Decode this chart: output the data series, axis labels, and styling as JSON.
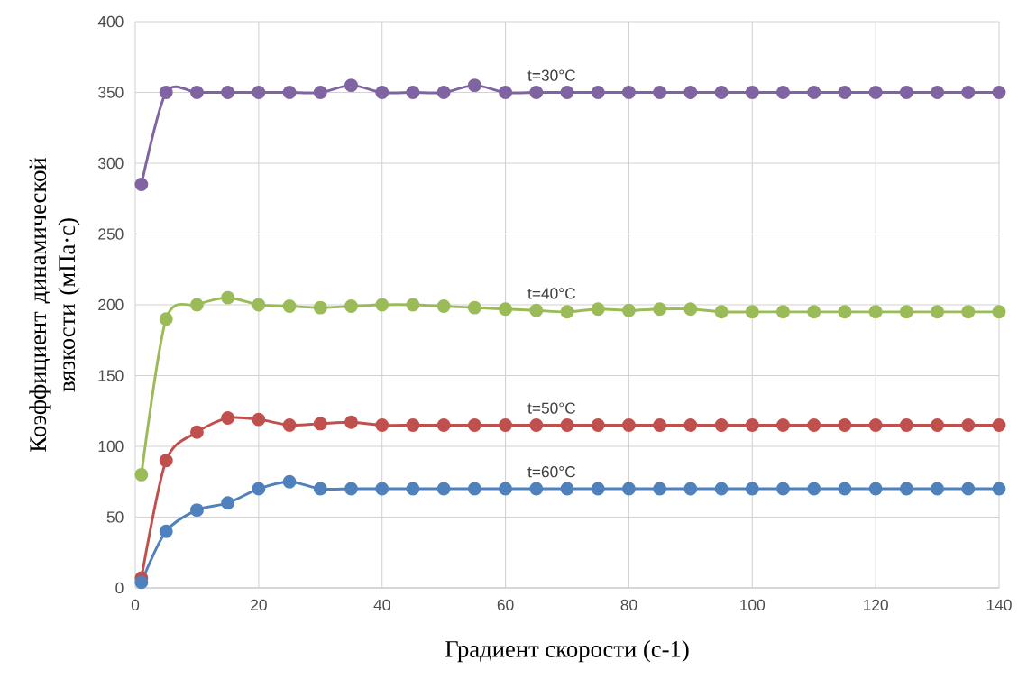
{
  "chart_data": {
    "type": "line",
    "xlabel": "Градиент скорости (с-1)",
    "ylabel": "Коэффициент динамической вязкости (мПа·с)",
    "x": [
      1,
      5,
      10,
      15,
      20,
      25,
      30,
      35,
      40,
      45,
      50,
      55,
      60,
      65,
      70,
      75,
      80,
      85,
      90,
      95,
      100,
      105,
      110,
      115,
      120,
      125,
      130,
      135,
      140
    ],
    "series": [
      {
        "name": "t=30°C",
        "color": "#8064a2",
        "values": [
          285,
          350,
          350,
          350,
          350,
          350,
          350,
          355,
          350,
          350,
          350,
          355,
          350,
          350,
          350,
          350,
          350,
          350,
          350,
          350,
          350,
          350,
          350,
          350,
          350,
          350,
          350,
          350,
          350
        ]
      },
      {
        "name": "t=40°C",
        "color": "#9bbb59",
        "values": [
          80,
          190,
          200,
          205,
          200,
          199,
          198,
          199,
          200,
          200,
          199,
          198,
          197,
          196,
          195,
          197,
          196,
          197,
          197,
          195,
          195,
          195,
          195,
          195,
          195,
          195,
          195,
          195,
          195
        ]
      },
      {
        "name": "t=50°C",
        "color": "#c0504d",
        "values": [
          7,
          90,
          110,
          120,
          119,
          115,
          116,
          117,
          115,
          115,
          115,
          115,
          115,
          115,
          115,
          115,
          115,
          115,
          115,
          115,
          115,
          115,
          115,
          115,
          115,
          115,
          115,
          115,
          115
        ]
      },
      {
        "name": "t=60°C",
        "color": "#4f81bd",
        "values": [
          4,
          40,
          55,
          60,
          70,
          75,
          70,
          70,
          70,
          70,
          70,
          70,
          70,
          70,
          70,
          70,
          70,
          70,
          70,
          70,
          70,
          70,
          70,
          70,
          70,
          70,
          70,
          70,
          70
        ]
      }
    ],
    "xlim": [
      0,
      140
    ],
    "xticks": [
      0,
      20,
      40,
      60,
      80,
      100,
      120,
      140
    ],
    "ylim": [
      0,
      400
    ],
    "yticks": [
      0,
      50,
      100,
      150,
      200,
      250,
      300,
      350,
      400
    ],
    "grid": true,
    "marker": "circle",
    "line_style": "solid"
  }
}
